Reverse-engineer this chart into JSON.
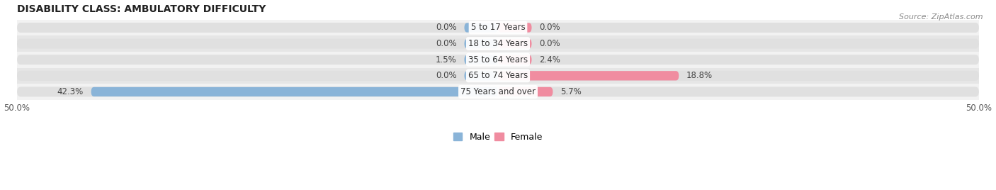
{
  "title": "DISABILITY CLASS: AMBULATORY DIFFICULTY",
  "source": "Source: ZipAtlas.com",
  "categories": [
    "5 to 17 Years",
    "18 to 34 Years",
    "35 to 64 Years",
    "65 to 74 Years",
    "75 Years and over"
  ],
  "male_values": [
    0.0,
    0.0,
    1.5,
    0.0,
    42.3
  ],
  "female_values": [
    0.0,
    0.0,
    2.4,
    18.8,
    5.7
  ],
  "male_labels": [
    "0.0%",
    "0.0%",
    "1.5%",
    "0.0%",
    "42.3%"
  ],
  "female_labels": [
    "0.0%",
    "0.0%",
    "2.4%",
    "18.8%",
    "5.7%"
  ],
  "male_color": "#8ab4d8",
  "female_color": "#f08ca0",
  "row_bg_light": "#f2f2f2",
  "row_bg_dark": "#e6e6e6",
  "pill_bg_color": "#e0e0e0",
  "xlim": 50.0,
  "title_fontsize": 10,
  "source_fontsize": 8,
  "label_fontsize": 8.5,
  "cat_fontsize": 8.5,
  "bar_height": 0.62,
  "figsize": [
    14.06,
    2.68
  ],
  "dpi": 100,
  "min_bar_val": 3.5
}
